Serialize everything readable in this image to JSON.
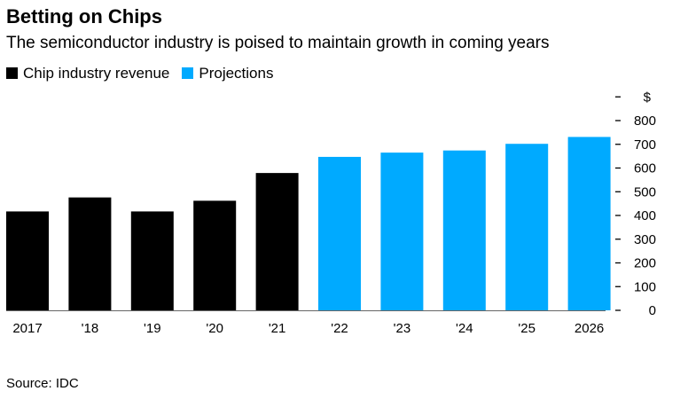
{
  "chart_data": {
    "type": "bar",
    "title": "Betting on Chips",
    "subtitle": "The semiconductor industry is poised to maintain growth in coming years",
    "categories": [
      "2017",
      "'18",
      "'19",
      "'20",
      "'21",
      "'22",
      "'23",
      "'24",
      "'25",
      "2026"
    ],
    "values": [
      417,
      476,
      417,
      462,
      579,
      647,
      665,
      674,
      702,
      731
    ],
    "series_type": [
      "actual",
      "actual",
      "actual",
      "actual",
      "actual",
      "projection",
      "projection",
      "projection",
      "projection",
      "projection"
    ],
    "legend": [
      {
        "name": "Chip industry revenue",
        "color": "#000000"
      },
      {
        "name": "Projections",
        "color": "#00aaff"
      }
    ],
    "legend_placement": "top-left",
    "ylabel": "$",
    "ylim": [
      0,
      800
    ],
    "yticks": [
      0,
      100,
      200,
      300,
      400,
      500,
      600,
      700,
      800
    ],
    "yaxis_side": "right",
    "grid": false,
    "source": "Source: IDC"
  }
}
